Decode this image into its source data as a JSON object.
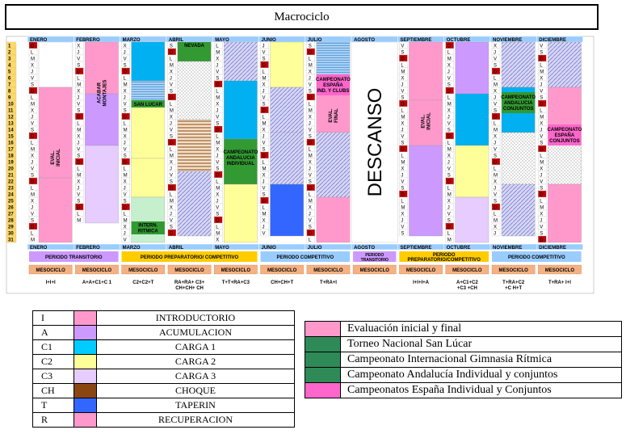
{
  "title": "Macrociclo",
  "months": [
    "ENERO",
    "FEBRERO",
    "MARZO",
    "ABRIL",
    "MAYO",
    "JUNIO",
    "JULIO",
    "AGOSTO",
    "SEPTIEMBRE",
    "OCTUBRE",
    "NOVIEMBRE",
    "DICIEMBRE"
  ],
  "descanso": "DESCANSO",
  "events": {
    "nevada": "NEVADA",
    "san_lucar": "SAN LUCAR",
    "intern_ritmica": [
      "INTERN.",
      "RITMICA"
    ],
    "camp_andalucia_ind": [
      "CAMPEONATO",
      "ANDALUCIA",
      "INDIVIDUAL"
    ],
    "camp_espana_ind_clubs": [
      "CAMPEONATO",
      "ESPAÑA",
      "IND. Y CLUBS"
    ],
    "camp_andalucia_conj": [
      "CAMPEONATO",
      "ANDALUCIA",
      "CONJUNTOS"
    ],
    "camp_espana_conj": [
      "CAMPEONATO",
      "ESPAÑA",
      "CONJUNTOS"
    ],
    "acabar_montajes": [
      "ACABAR",
      "MONTAJES"
    ],
    "eval_inicial": [
      "EVAL.",
      "INICIAL"
    ],
    "eval_final": [
      "EVAL.",
      "FINAL"
    ]
  },
  "periods": {
    "transitorio": "PERIODO TRANSITORIO",
    "preparatorio": "PERIODO PREPARATORIO/ COMPETITIVO",
    "competitivo": "PERIODO COMPETITIVO",
    "transitorio_ago": [
      "PERIODO",
      "TRANSITORIO"
    ],
    "prep_comp_sep": [
      "PERIODO",
      "PREPARATORIO/COMPETITIVO"
    ],
    "competitivo_nov": "PERIODO COMPETITIVO"
  },
  "mesociclo": "MESOCICLO",
  "meso_sequences": [
    "I+I+I",
    "A+A+C1+C 1",
    "C2+C2+T",
    "RA+RA+ C3+CH+CH+ CH",
    "T+T+RA+C3",
    "CH+CH+T",
    "T+RA+I",
    "",
    "I+I+I+A",
    "A+C1+C2+C3 +CH",
    "T+RA+C2+C H+T",
    "T+RA+ I+I"
  ],
  "legend_loads": [
    {
      "code": "I",
      "name": "INTRODUCTORIO",
      "color": "#ff99cc"
    },
    {
      "code": "A",
      "name": "ACUMULACION",
      "color": "#cc99ff"
    },
    {
      "code": "C1",
      "name": "CARGA 1",
      "color": "#00ccff"
    },
    {
      "code": "C2",
      "name": "CARGA 2",
      "color": "#ffff99"
    },
    {
      "code": "C3",
      "name": "CARGA 3",
      "color": "#e6ccff"
    },
    {
      "code": "CH",
      "name": "CHOQUE",
      "color": "#8b4513"
    },
    {
      "code": "T",
      "name": "TAPERIN",
      "color": "#3366ff"
    },
    {
      "code": "R",
      "name": "RECUPERACION",
      "color": "#ff99cc"
    }
  ],
  "legend_events": [
    {
      "name": "Evaluación inicial  y final",
      "color": "#ff99cc"
    },
    {
      "name": "Torneo Nacional San Lúcar",
      "color": "#2e8b57"
    },
    {
      "name": "Campeonato Internacional Gimnasia Rítmica",
      "color": "#2e8b57"
    },
    {
      "name": "Campeonato Andalucía Individual y conjuntos",
      "color": "#2e8b57"
    },
    {
      "name": "Campeonatos España Individual y Conjuntos",
      "color": "#ff66cc"
    }
  ],
  "colors": {
    "header": "#99ccff",
    "weekend": "#c00000",
    "event_green": "#339933",
    "period_yellow": "#ffcc00",
    "period_blue": "#99ccff",
    "period_purple": "#cc99ff",
    "meso": "#f4b183"
  }
}
